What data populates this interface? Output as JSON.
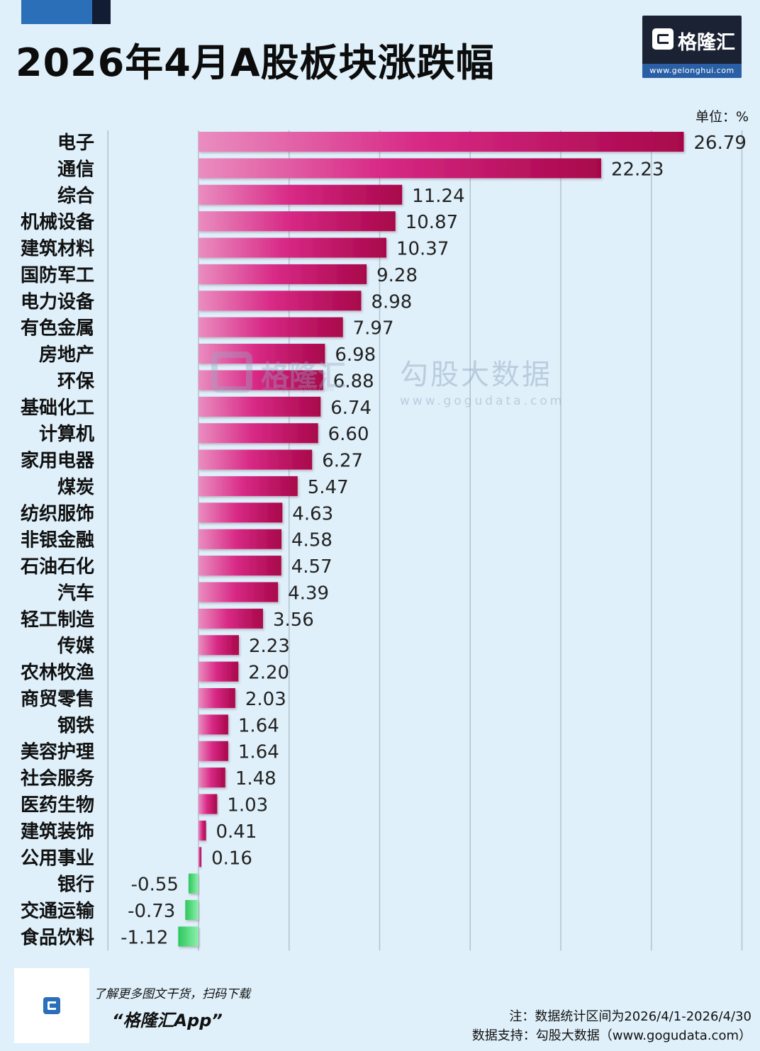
{
  "title": "2026年4月A股板块涨跌幅",
  "logo": {
    "name": "格隆汇",
    "url": "www.gelonghui.com"
  },
  "unit_label": "单位：%",
  "watermark": {
    "brand": "格隆汇",
    "brand_url": "www.gelonghui.com",
    "data_brand": "勾股大数据",
    "data_url": "www.gogudata.com"
  },
  "footer": {
    "qr_note": "了解更多图文干货，扫码下载",
    "app_name": "“格隆汇App”",
    "note": "注：数据统计区间为2026/4/1-2026/4/30",
    "source": "数据支持：勾股大数据（www.gogudata.com）"
  },
  "colors": {
    "positive": "#c4145f",
    "positive_light": "#e885b8",
    "negative": "#3dd36a",
    "background": "#dff0fa"
  },
  "chart_data": {
    "type": "bar",
    "orientation": "horizontal",
    "title": "2026年4月A股板块涨跌幅",
    "unit": "%",
    "xlim": [
      -5,
      30
    ],
    "grid": true,
    "categories": [
      "电子",
      "通信",
      "综合",
      "机械设备",
      "建筑材料",
      "国防军工",
      "电力设备",
      "有色金属",
      "房地产",
      "环保",
      "基础化工",
      "计算机",
      "家用电器",
      "煤炭",
      "纺织服饰",
      "非银金融",
      "石油石化",
      "汽车",
      "轻工制造",
      "传媒",
      "农林牧渔",
      "商贸零售",
      "钢铁",
      "美容护理",
      "社会服务",
      "医药生物",
      "建筑装饰",
      "公用事业",
      "银行",
      "交通运输",
      "食品饮料"
    ],
    "values": [
      26.79,
      22.23,
      11.24,
      10.87,
      10.37,
      9.28,
      8.98,
      7.97,
      6.98,
      6.88,
      6.74,
      6.6,
      6.27,
      5.47,
      4.63,
      4.58,
      4.57,
      4.39,
      3.56,
      2.23,
      2.2,
      2.03,
      1.64,
      1.64,
      1.48,
      1.03,
      0.41,
      0.16,
      -0.55,
      -0.73,
      -1.12
    ],
    "value_labels": [
      "26.79",
      "22.23",
      "11.24",
      "10.87",
      "10.37",
      "9.28",
      "8.98",
      "7.97",
      "6.98",
      "6.88",
      "6.74",
      "6.60",
      "6.27",
      "5.47",
      "4.63",
      "4.58",
      "4.57",
      "4.39",
      "3.56",
      "2.23",
      "2.20",
      "2.03",
      "1.64",
      "1.64",
      "1.48",
      "1.03",
      "0.41",
      "0.16",
      "-0.55",
      "-0.73",
      "-1.12"
    ]
  }
}
